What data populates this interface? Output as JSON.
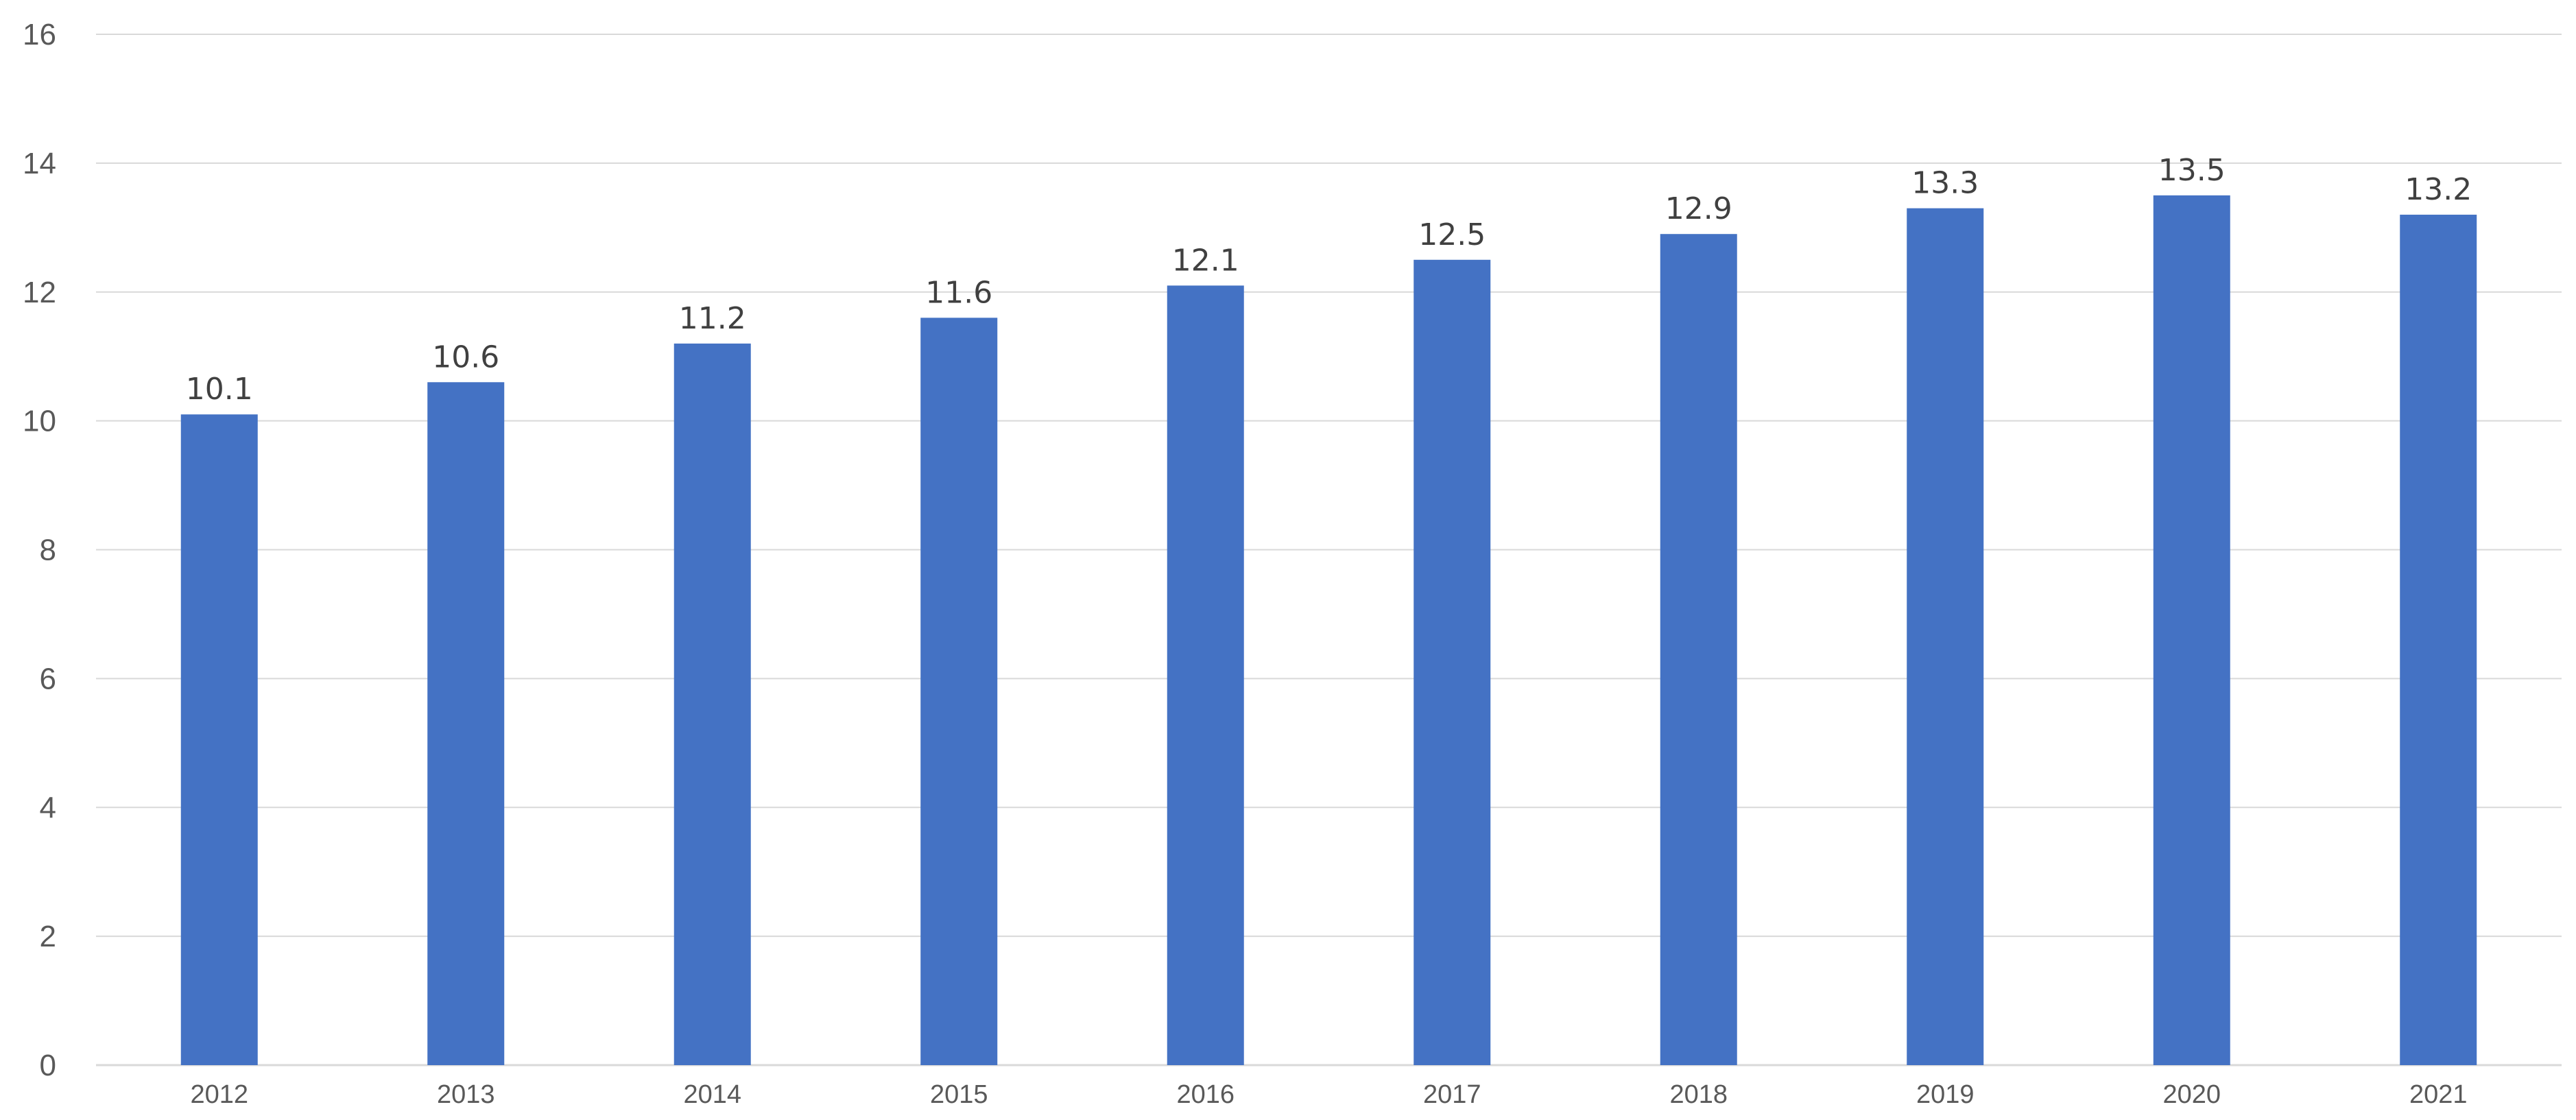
{
  "chart_data": {
    "type": "bar",
    "title": "",
    "xlabel": "",
    "ylabel": "",
    "categories": [
      "2012",
      "2013",
      "2014",
      "2015",
      "2016",
      "2017",
      "2018",
      "2019",
      "2020",
      "2021"
    ],
    "series": [
      {
        "values": [
          10.1,
          10.6,
          11.2,
          11.6,
          12.1,
          12.5,
          12.9,
          13.3,
          13.5,
          13.2
        ]
      }
    ],
    "data_labels": [
      "10.1",
      "10.6",
      "11.2",
      "11.6",
      "12.1",
      "12.5",
      "12.9",
      "13.3",
      "13.5",
      "13.2"
    ],
    "ylim": [
      0,
      16
    ],
    "yticks": [
      "0",
      "2",
      "4",
      "6",
      "8",
      "10",
      "12",
      "14",
      "16"
    ],
    "grid": true,
    "legend": "none",
    "bar_color": "#4472C4"
  }
}
